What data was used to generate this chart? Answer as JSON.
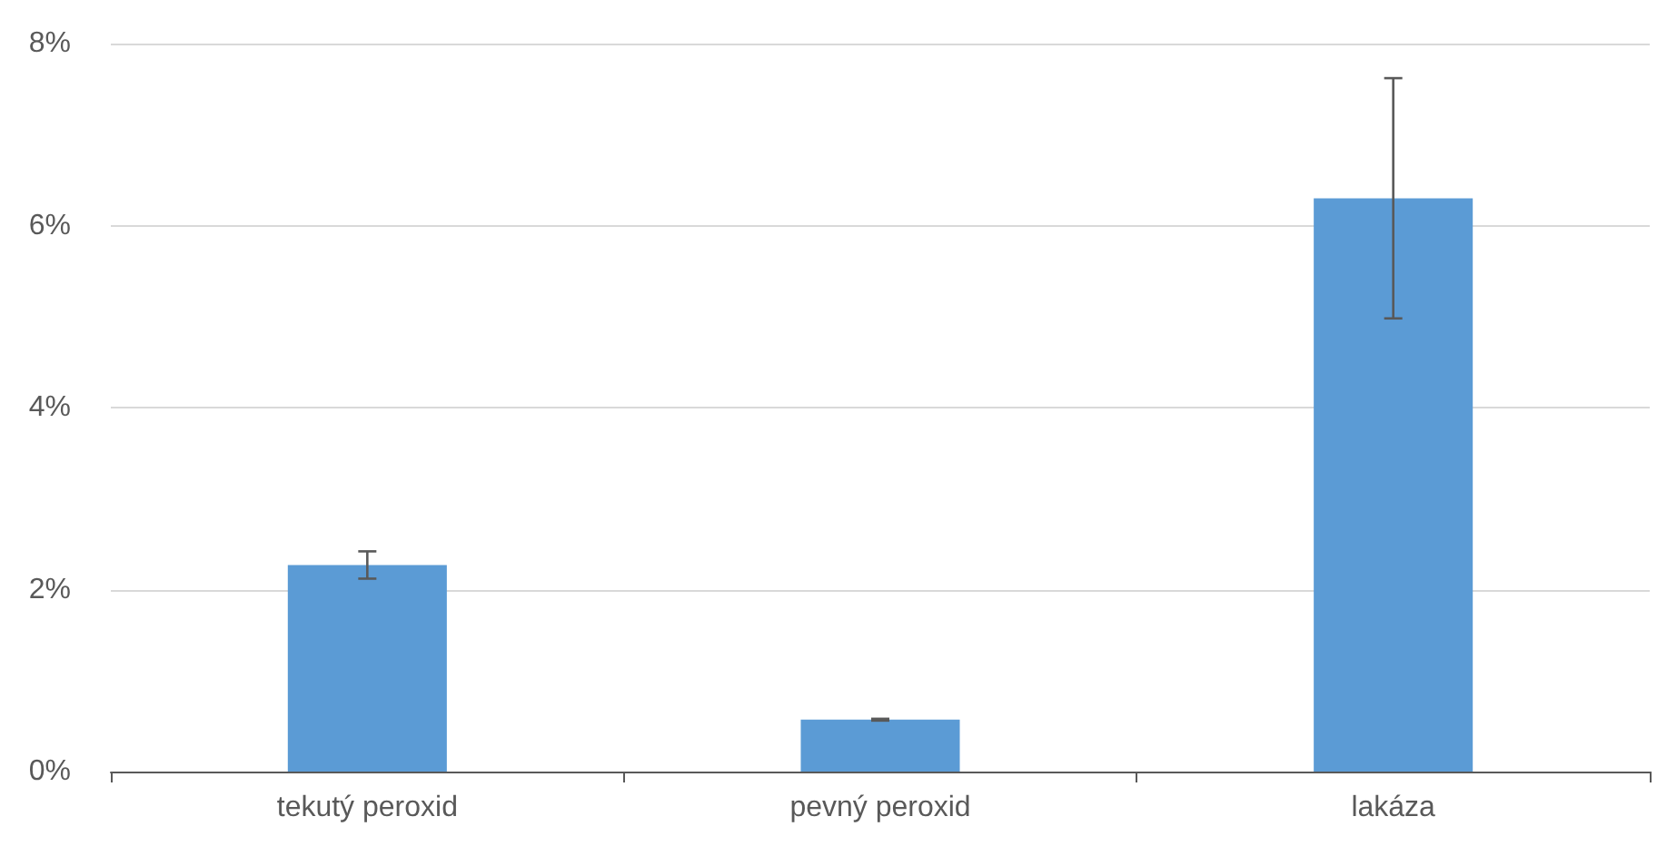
{
  "chart_data": {
    "type": "bar",
    "categories": [
      "tekutý peroxid",
      "pevný peroxid",
      "lakáza"
    ],
    "values": [
      2.27,
      0.57,
      6.3
    ],
    "errors": [
      0.15,
      0.01,
      1.32
    ],
    "color": "#5b9bd5",
    "ylim": [
      0,
      8
    ],
    "yticks": [
      {
        "value": 0,
        "label": "0%"
      },
      {
        "value": 2,
        "label": "2%"
      },
      {
        "value": 4,
        "label": "4%"
      },
      {
        "value": 6,
        "label": "6%"
      },
      {
        "value": 8,
        "label": "8%"
      }
    ],
    "grid": "y"
  }
}
